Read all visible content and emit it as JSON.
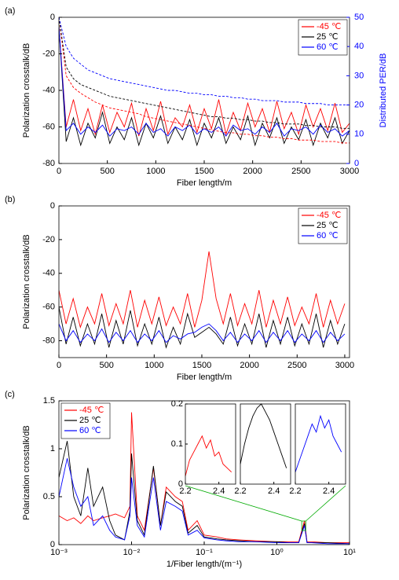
{
  "chart_data": [
    {
      "type": "line",
      "label": "(a)",
      "xlabel": "Fiber length/m",
      "ylabel": "Polarization crosstalk/dB",
      "y2label": "Distributed PER/dB",
      "y2color": "#0000ff",
      "x": [
        0,
        75,
        150,
        225,
        300,
        375,
        450,
        525,
        600,
        675,
        750,
        825,
        900,
        975,
        1050,
        1125,
        1200,
        1275,
        1350,
        1425,
        1500,
        1575,
        1650,
        1725,
        1800,
        1875,
        1950,
        2025,
        2100,
        2175,
        2250,
        2325,
        2400,
        2475,
        2550,
        2625,
        2700,
        2775,
        2850,
        2925,
        3000
      ],
      "xlim": [
        0,
        3000
      ],
      "xticks": [
        0,
        500,
        1000,
        1500,
        2000,
        2500,
        3000
      ],
      "ylim": [
        -80,
        0
      ],
      "yticks": [
        -80,
        -60,
        -40,
        -20,
        0
      ],
      "y2lim": [
        0,
        50
      ],
      "y2ticks": [
        0,
        10,
        20,
        30,
        40,
        50
      ],
      "legend": "upper right",
      "grid": false,
      "series": [
        {
          "name": "-45 ℃",
          "color": "#ff0000",
          "values": [
            -5,
            -60,
            -45,
            -62,
            -50,
            -64,
            -48,
            -63,
            -52,
            -60,
            -47,
            -65,
            -50,
            -62,
            -46,
            -64,
            -55,
            -60,
            -48,
            -63,
            -50,
            -61,
            -45,
            -64,
            -52,
            -62,
            -47,
            -60,
            -50,
            -63,
            -46,
            -61,
            -52,
            -64,
            -48,
            -60,
            -50,
            -62,
            -47,
            -63,
            -58
          ]
        },
        {
          "name": "25 ℃",
          "color": "#000000",
          "values": [
            -5,
            -68,
            -55,
            -70,
            -58,
            -66,
            -52,
            -69,
            -60,
            -67,
            -55,
            -70,
            -58,
            -66,
            -54,
            -69,
            -60,
            -67,
            -56,
            -70,
            -58,
            -66,
            -55,
            -69,
            -60,
            -67,
            -54,
            -70,
            -58,
            -66,
            -55,
            -69,
            -60,
            -67,
            -56,
            -70,
            -58,
            -66,
            -55,
            -69,
            -62
          ]
        },
        {
          "name": "60 ℃",
          "color": "#0000ff",
          "values": [
            -5,
            -62,
            -58,
            -64,
            -60,
            -63,
            -59,
            -65,
            -61,
            -62,
            -60,
            -64,
            -58,
            -63,
            -61,
            -65,
            -60,
            -62,
            -59,
            -64,
            -61,
            -63,
            -60,
            -65,
            -59,
            -62,
            -61,
            -64,
            -60,
            -63,
            -58,
            -65,
            -61,
            -62,
            -60,
            -64,
            -59,
            -63,
            -61,
            -65,
            -62
          ]
        },
        {
          "axis": "y2",
          "dashed": true,
          "color": "#ff0000",
          "values": [
            50,
            30,
            26,
            24,
            22.5,
            21,
            20,
            19,
            18.5,
            18,
            17.5,
            17,
            16,
            15.5,
            15,
            14.5,
            14,
            13.5,
            13,
            12.5,
            12,
            11.5,
            11,
            10.5,
            10.5,
            10,
            10,
            9.5,
            9.5,
            9,
            9,
            8.5,
            8.5,
            8,
            8,
            8,
            7.5,
            7.5,
            7.5,
            7,
            7
          ]
        },
        {
          "axis": "y2",
          "dashed": true,
          "color": "#000000",
          "values": [
            50,
            33,
            29,
            27,
            26,
            25,
            24,
            23,
            22.5,
            22,
            21.5,
            21,
            20.5,
            20,
            19.5,
            19,
            18.5,
            18,
            17.5,
            17,
            16.5,
            16,
            16,
            15.5,
            15.5,
            15,
            15,
            14.5,
            14.5,
            14,
            14,
            13.5,
            13.5,
            13.5,
            13,
            13,
            12.5,
            12.5,
            12.5,
            12,
            12
          ]
        },
        {
          "axis": "y2",
          "dashed": true,
          "color": "#0000ff",
          "values": [
            50,
            40,
            36,
            34,
            32,
            31,
            30,
            29,
            28.5,
            28,
            27.5,
            27,
            26.5,
            26,
            25.5,
            25,
            25,
            24.5,
            24,
            24,
            23.5,
            23.5,
            23,
            23,
            22.5,
            22.5,
            22,
            22,
            21.5,
            21.5,
            21.5,
            21,
            21,
            21,
            20.5,
            20.5,
            20.5,
            20,
            20,
            20,
            20
          ]
        }
      ]
    },
    {
      "type": "line",
      "label": "(b)",
      "xlabel": "Fiber length/m",
      "ylabel": "Polarization crosstalk/dB",
      "x": [
        0,
        75,
        150,
        225,
        300,
        375,
        450,
        525,
        600,
        675,
        750,
        825,
        900,
        975,
        1050,
        1125,
        1200,
        1275,
        1350,
        1425,
        1500,
        1575,
        1650,
        1725,
        1800,
        1875,
        1950,
        2025,
        2100,
        2175,
        2250,
        2325,
        2400,
        2475,
        2550,
        2625,
        2700,
        2775,
        2850,
        2925,
        3000
      ],
      "xlim": [
        0,
        3050
      ],
      "xticks": [
        0,
        500,
        1000,
        1500,
        2000,
        2500,
        3000
      ],
      "ylim": [
        -90,
        0
      ],
      "yticks": [
        -80,
        -60,
        -40,
        -20,
        0
      ],
      "legend": "upper right",
      "grid": false,
      "series": [
        {
          "name": "-45 ℃",
          "color": "#ff0000",
          "values": [
            -50,
            -70,
            -55,
            -72,
            -60,
            -70,
            -52,
            -71,
            -58,
            -70,
            -50,
            -72,
            -56,
            -70,
            -54,
            -71,
            -60,
            -70,
            -52,
            -72,
            -56,
            -27,
            -55,
            -70,
            -52,
            -71,
            -58,
            -70,
            -50,
            -72,
            -56,
            -70,
            -54,
            -71,
            -60,
            -70,
            -52,
            -72,
            -56,
            -70,
            -58
          ]
        },
        {
          "name": "25 ℃",
          "color": "#000000",
          "values": [
            -60,
            -82,
            -66,
            -83,
            -70,
            -82,
            -64,
            -84,
            -68,
            -82,
            -62,
            -83,
            -70,
            -82,
            -66,
            -84,
            -72,
            -82,
            -64,
            -78,
            -75,
            -72,
            -76,
            -82,
            -66,
            -83,
            -70,
            -82,
            -64,
            -84,
            -68,
            -82,
            -66,
            -83,
            -70,
            -82,
            -64,
            -84,
            -68,
            -82,
            -70
          ]
        },
        {
          "name": "60 ℃",
          "color": "#0000ff",
          "values": [
            -70,
            -80,
            -74,
            -81,
            -76,
            -80,
            -73,
            -81,
            -75,
            -80,
            -74,
            -81,
            -76,
            -80,
            -74,
            -81,
            -77,
            -79,
            -76,
            -75,
            -72,
            -70,
            -74,
            -80,
            -75,
            -81,
            -76,
            -80,
            -74,
            -81,
            -75,
            -80,
            -74,
            -81,
            -76,
            -80,
            -74,
            -81,
            -75,
            -80,
            -76
          ]
        }
      ]
    },
    {
      "type": "line",
      "label": "(c)",
      "xlabel": "1/Fiber length/(m⁻¹)",
      "ylabel": "Polarization crosstalk/dB",
      "log_x": true,
      "x": [
        0.001,
        0.0013,
        0.0016,
        0.002,
        0.0025,
        0.003,
        0.004,
        0.005,
        0.006,
        0.008,
        0.0095,
        0.01,
        0.012,
        0.015,
        0.02,
        0.025,
        0.03,
        0.04,
        0.05,
        0.06,
        0.08,
        0.1,
        0.15,
        0.2,
        0.3,
        0.5,
        1,
        1.5,
        2,
        2.4,
        2.6,
        3,
        5,
        10
      ],
      "xlim": [
        0.001,
        10
      ],
      "xticks": [
        {
          "value": 0.001,
          "label": "10⁻³"
        },
        {
          "value": 0.01,
          "label": "10⁻²"
        },
        {
          "value": 0.1,
          "label": "10⁻¹"
        },
        {
          "value": 1,
          "label": "10⁰"
        },
        {
          "value": 10,
          "label": "10¹"
        }
      ],
      "ylim": [
        0,
        1.5
      ],
      "yticks": [
        0,
        0.5,
        1,
        1.5
      ],
      "legend": "upper left",
      "grid": false,
      "series": [
        {
          "name": "-45 ℃",
          "color": "#ff0000",
          "values": [
            0.3,
            0.25,
            0.28,
            0.22,
            0.3,
            0.25,
            0.28,
            0.3,
            0.32,
            0.28,
            0.4,
            1.38,
            0.3,
            0.15,
            0.8,
            0.2,
            0.6,
            0.5,
            0.45,
            0.15,
            0.25,
            0.1,
            0.08,
            0.06,
            0.05,
            0.04,
            0.03,
            0.03,
            0.03,
            0.25,
            0.03,
            0.03,
            0.02,
            0.02
          ]
        },
        {
          "name": "25 ℃",
          "color": "#000000",
          "values": [
            0.7,
            1.08,
            0.5,
            0.3,
            0.8,
            0.4,
            0.6,
            0.25,
            0.1,
            0.05,
            0.35,
            0.95,
            0.25,
            0.1,
            0.82,
            0.2,
            0.55,
            0.45,
            0.4,
            0.12,
            0.2,
            0.08,
            0.06,
            0.05,
            0.04,
            0.03,
            0.03,
            0.02,
            0.02,
            0.22,
            0.02,
            0.02,
            0.02,
            0.01
          ]
        },
        {
          "name": "60 ℃",
          "color": "#0000ff",
          "values": [
            0.5,
            0.9,
            0.6,
            0.4,
            0.5,
            0.2,
            0.3,
            0.15,
            0.08,
            0.05,
            0.3,
            0.7,
            0.2,
            0.08,
            0.7,
            0.15,
            0.45,
            0.4,
            0.35,
            0.1,
            0.15,
            0.07,
            0.05,
            0.04,
            0.03,
            0.03,
            0.02,
            0.02,
            0.02,
            0.2,
            0.02,
            0.02,
            0.01,
            0.01
          ]
        }
      ],
      "inset": {
        "x": [
          2.2,
          2.225,
          2.25,
          2.275,
          2.3,
          2.325,
          2.35,
          2.375,
          2.4,
          2.425,
          2.45,
          2.475
        ],
        "xlim": [
          2.2,
          2.5
        ],
        "xticks": [
          2.2,
          2.4
        ],
        "ylim": [
          0,
          0.2
        ],
        "yticks": [
          0,
          0.1,
          0.2
        ],
        "series": [
          {
            "color": "#ff0000",
            "values": [
              0.02,
              0.06,
              0.08,
              0.1,
              0.12,
              0.09,
              0.11,
              0.07,
              0.08,
              0.05,
              0.04,
              0.03
            ]
          },
          {
            "color": "#000000",
            "values": [
              0.05,
              0.1,
              0.14,
              0.17,
              0.19,
              0.2,
              0.18,
              0.16,
              0.13,
              0.1,
              0.07,
              0.04
            ]
          },
          {
            "color": "#0000ff",
            "values": [
              0.03,
              0.06,
              0.09,
              0.12,
              0.15,
              0.13,
              0.17,
              0.14,
              0.16,
              0.12,
              0.1,
              0.08
            ]
          }
        ]
      }
    }
  ]
}
